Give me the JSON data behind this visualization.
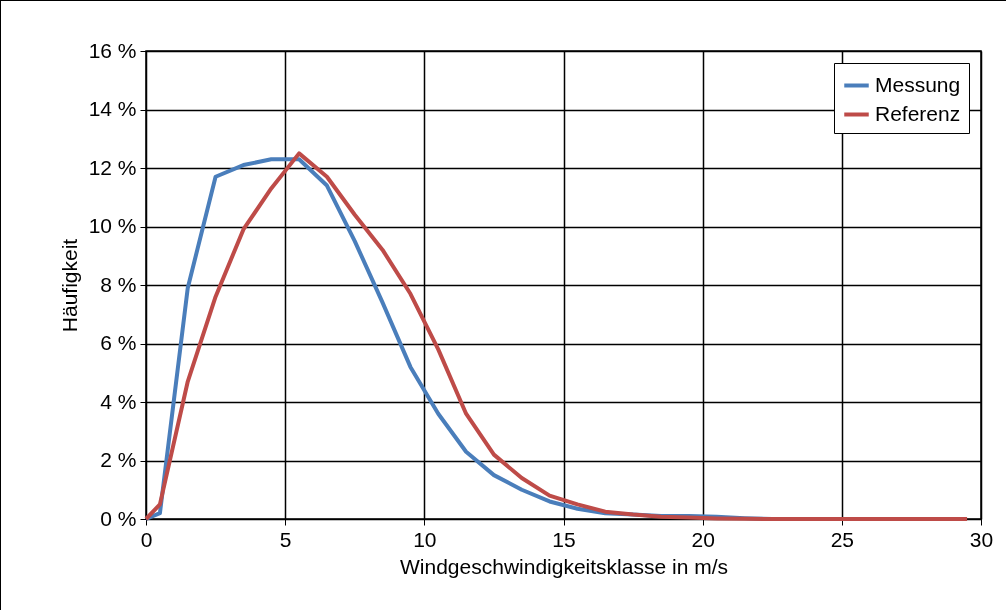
{
  "chart_data": {
    "type": "line",
    "xlabel": "Windgeschwindigkeitsklasse in m/s",
    "ylabel": "Häufigkeit",
    "x": [
      0,
      0.5,
      1.5,
      2.5,
      3.5,
      4.5,
      5.5,
      6.5,
      7.5,
      8.5,
      9.5,
      10.5,
      11.5,
      12.5,
      13.5,
      14.5,
      15.5,
      16.5,
      17.5,
      18.5,
      19.5,
      20.5,
      21.5,
      22.5,
      23.5,
      24.5,
      25.5,
      26.5,
      27.5,
      28.5,
      29.5
    ],
    "series": [
      {
        "name": "Messung",
        "color": "#4a7ebb",
        "values": [
          0,
          0.2,
          7.9,
          11.7,
          12.1,
          12.3,
          12.3,
          11.4,
          9.5,
          7.4,
          5.2,
          3.6,
          2.3,
          1.5,
          1.0,
          0.6,
          0.35,
          0.2,
          0.15,
          0.1,
          0.1,
          0.08,
          0.03,
          0,
          0,
          null,
          null,
          null,
          null,
          null,
          null
        ]
      },
      {
        "name": "Referenz",
        "color": "#be4b48",
        "values": [
          0,
          0.5,
          4.7,
          7.6,
          9.9,
          11.3,
          12.5,
          11.7,
          10.4,
          9.2,
          7.7,
          5.8,
          3.6,
          2.2,
          1.4,
          0.8,
          0.5,
          0.25,
          0.15,
          0.08,
          0.05,
          0.02,
          0.01,
          0,
          0,
          0,
          0,
          0,
          0,
          0,
          0
        ]
      }
    ],
    "xlim": [
      0,
      30
    ],
    "xticks": [
      0,
      5,
      10,
      15,
      20,
      25,
      30
    ],
    "ylim": [
      0,
      16
    ],
    "yticks": [
      {
        "value": 0,
        "label": "0 %"
      },
      {
        "value": 2,
        "label": "2 %"
      },
      {
        "value": 4,
        "label": "4 %"
      },
      {
        "value": 6,
        "label": "6 %"
      },
      {
        "value": 8,
        "label": "8 %"
      },
      {
        "value": 10,
        "label": "10 %"
      },
      {
        "value": 12,
        "label": "12 %"
      },
      {
        "value": 14,
        "label": "14 %"
      },
      {
        "value": 16,
        "label": "16 %"
      }
    ],
    "grid": true,
    "legend": "top right",
    "marker": "none",
    "line_style": "solid"
  }
}
